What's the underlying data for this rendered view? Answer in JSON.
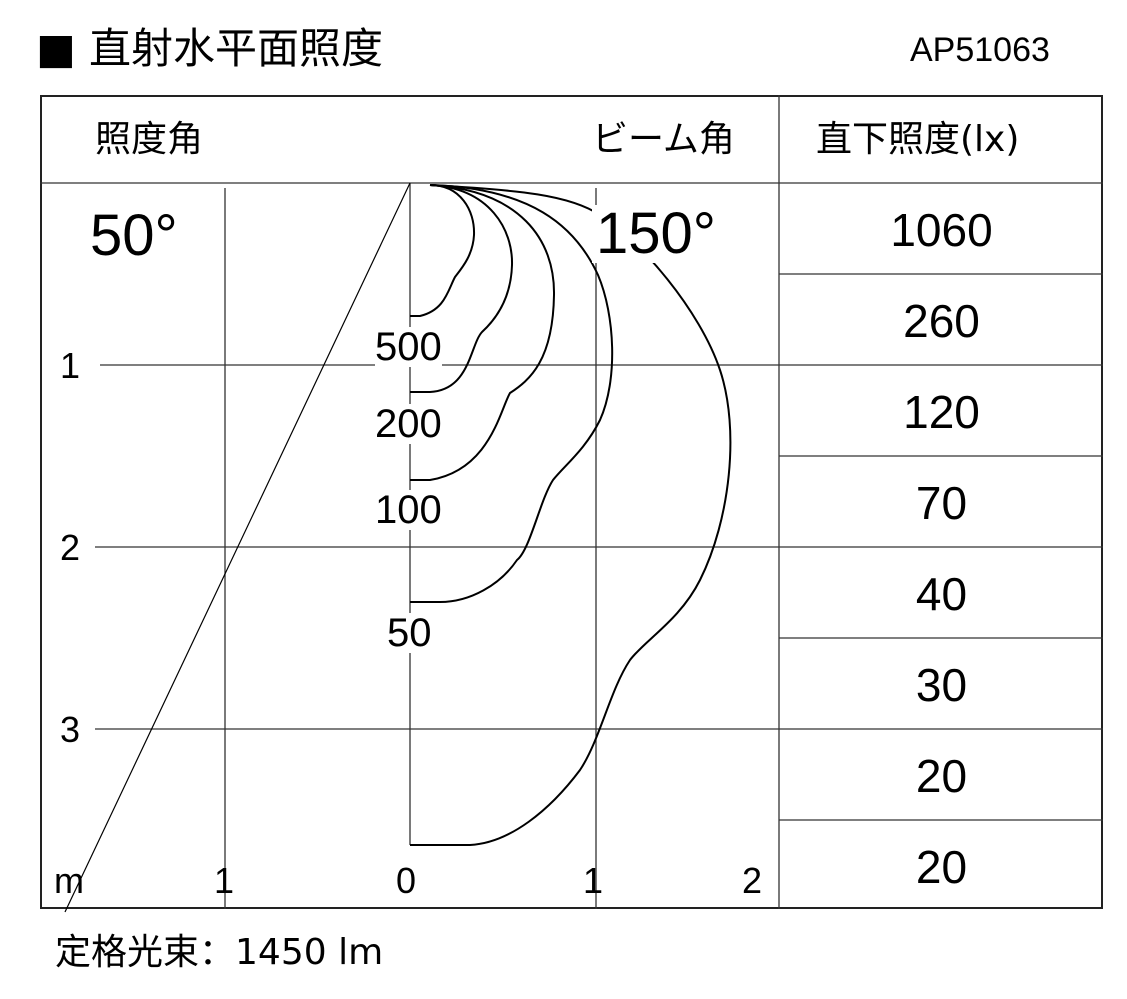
{
  "title": "■ 直射水平面照度",
  "model": "AP51063",
  "header": {
    "illuminance_angle_label": "照度角",
    "beam_angle_label": "ビーム角",
    "direct_illuminance_label": "直下照度(lx)"
  },
  "chart_data": {
    "type": "isolux",
    "illuminance_angle": "50°",
    "beam_angle": "150°",
    "x_ticks": [
      "1",
      "0",
      "1",
      "2"
    ],
    "y_ticks": [
      "1",
      "2",
      "3"
    ],
    "unit": "m",
    "contours": [
      {
        "label": "500",
        "center_depth_m": 0.73
      },
      {
        "label": "200",
        "center_depth_m": 1.15
      },
      {
        "label": "100",
        "center_depth_m": 1.63
      },
      {
        "label": "50",
        "center_depth_m": 2.3
      },
      {
        "label": "",
        "center_depth_m": 3.63
      }
    ],
    "direct_illuminance_lx": [
      "1060",
      "260",
      "120",
      "70",
      "40",
      "30",
      "20",
      "20"
    ]
  },
  "footer": {
    "label": "定格光束：",
    "value": "1450 lm"
  }
}
